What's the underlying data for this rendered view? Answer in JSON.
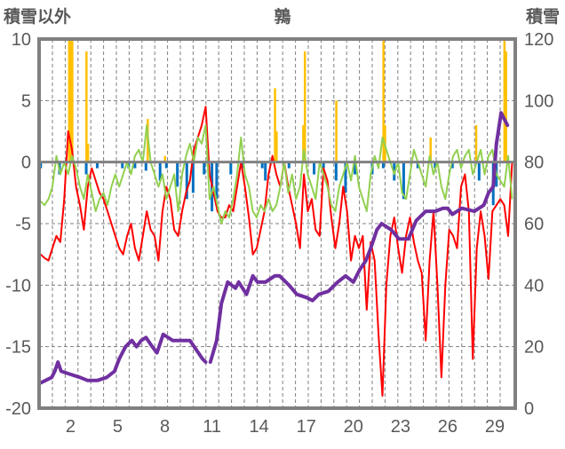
{
  "chart_data": {
    "type": "line",
    "title": "鶉",
    "ylabel_left": "積雪以外",
    "ylabel_right": "積雪",
    "ylim_left": [
      -20,
      10
    ],
    "ylim_right": [
      0,
      120
    ],
    "yticks_left": [
      "10",
      "5",
      "0",
      "-5",
      "-10",
      "-15",
      "-20"
    ],
    "yticks_right": [
      "120",
      "100",
      "80",
      "60",
      "40",
      "20",
      "0"
    ],
    "xlim": [
      0,
      30.3
    ],
    "xticks": [
      "2",
      "5",
      "8",
      "11",
      "14",
      "17",
      "20",
      "23",
      "26",
      "29"
    ],
    "grid": true,
    "colors": {
      "red": "#ff0000",
      "green": "#92d050",
      "blue": "#0070c0",
      "orange": "#ffc000",
      "purple": "#7030a0",
      "axis": "#808080"
    },
    "series": [
      {
        "name": "red-line",
        "axis": "left",
        "x_start": 0.1,
        "x_step": 0.25,
        "values": [
          -7.5,
          -7.8,
          -8,
          -7,
          -6,
          -6.5,
          -3,
          2.5,
          1,
          -2,
          -3.5,
          -5.5,
          -2,
          -0.5,
          -1.5,
          -2.5,
          -3,
          -4,
          -5,
          -6,
          -7,
          -7.5,
          -6,
          -5,
          -7,
          -8,
          -6,
          -4,
          -5.5,
          -6,
          -8,
          -4,
          -2,
          -3,
          -5.5,
          -6,
          -4,
          -2.5,
          -1.5,
          1,
          2,
          3,
          4.5,
          -1,
          -2.5,
          -4,
          -4.5,
          -4.5,
          -3.5,
          -4,
          -2,
          0,
          -2,
          -4.5,
          -7.5,
          -7,
          -5.5,
          -4,
          -1,
          0.5,
          -1,
          -2,
          0,
          -2,
          -3.5,
          -5,
          -7,
          -1,
          -4,
          -3,
          -5.5,
          -6,
          -0.5,
          -1.5,
          -4.5,
          -7,
          -5,
          -2,
          -4,
          -8,
          -6,
          -7,
          -6,
          -12,
          -6.5,
          -8,
          -14,
          -19,
          -10,
          -6,
          -4.5,
          -7,
          -9,
          -6,
          -4.5,
          -6.5,
          -8,
          -9,
          -14.5,
          -8,
          -4,
          -10,
          -17.5,
          -10,
          -5.5,
          -6,
          -7,
          -2,
          -1,
          -4,
          -16,
          -7,
          -4,
          -6,
          -9.5,
          -4,
          -3.5,
          -3,
          -3.5,
          -6,
          0
        ]
      },
      {
        "name": "green-line",
        "axis": "left",
        "x_start": 0.1,
        "x_step": 0.25,
        "values": [
          -3.2,
          -3.5,
          -3,
          -2,
          0.5,
          -1,
          0,
          -1,
          0.5,
          -0.5,
          -2,
          -3,
          -1,
          -2.5,
          -4,
          -3,
          -2.5,
          -3.5,
          -2,
          -1,
          -2,
          -1,
          0,
          -1,
          0.5,
          1,
          0,
          3,
          0,
          -1,
          -2,
          -1,
          -3,
          -2,
          -1,
          -4,
          -1,
          0.5,
          1.5,
          0,
          2,
          1.5,
          3,
          -3,
          -2,
          -3.5,
          -5,
          -4,
          -4.5,
          -3,
          -1,
          2,
          -1,
          -2,
          -4,
          -4.5,
          -3.5,
          -4,
          -3,
          -4,
          -3.5,
          -2,
          0,
          -2.5,
          -1,
          -3,
          -2,
          1,
          -1,
          -2,
          -3,
          0,
          -1,
          -2,
          -3.5,
          -4,
          -2,
          -1,
          0,
          -1.5,
          0.5,
          -2,
          -3,
          -4,
          -1,
          0.5,
          -0.5,
          2,
          1,
          0,
          -1,
          0,
          -2.5,
          -3,
          -1,
          1,
          0,
          -1,
          -2,
          0.5,
          -1,
          0,
          -2,
          -3,
          -1,
          0.5,
          1,
          -0.5,
          0.5,
          1,
          -1,
          0,
          1,
          -1,
          0.5,
          1,
          -1,
          -1.5,
          -2,
          0.5,
          -3
        ]
      },
      {
        "name": "snow-depth",
        "axis": "right",
        "points": [
          [
            0,
            8
          ],
          [
            0.4,
            9
          ],
          [
            0.8,
            10
          ],
          [
            1,
            12
          ],
          [
            1.2,
            15
          ],
          [
            1.4,
            12
          ],
          [
            2,
            11
          ],
          [
            2.6,
            10
          ],
          [
            3.1,
            9
          ],
          [
            3.7,
            9
          ],
          [
            4.3,
            10
          ],
          [
            4.8,
            12
          ],
          [
            5.1,
            16
          ],
          [
            5.5,
            20
          ],
          [
            5.9,
            22
          ],
          [
            6.2,
            20
          ],
          [
            6.5,
            22
          ],
          [
            6.8,
            23
          ],
          [
            7.2,
            20
          ],
          [
            7.5,
            18
          ],
          [
            7.9,
            24
          ],
          [
            8.5,
            22
          ],
          [
            9.1,
            22
          ],
          [
            9.6,
            22
          ],
          [
            10,
            19
          ],
          [
            10.4,
            16
          ],
          [
            10.6,
            15
          ],
          null,
          [
            10.9,
            15
          ],
          [
            11.3,
            22
          ],
          [
            11.6,
            34
          ],
          [
            12,
            41
          ],
          [
            12.5,
            39
          ],
          [
            12.7,
            41
          ],
          [
            13.2,
            37
          ],
          [
            13.6,
            43
          ],
          [
            13.9,
            41
          ],
          [
            14.4,
            41
          ],
          [
            15,
            43
          ],
          [
            15.3,
            43
          ],
          [
            15.9,
            40
          ],
          [
            16.4,
            37
          ],
          [
            17,
            36
          ],
          [
            17.4,
            35
          ],
          [
            17.8,
            37
          ],
          [
            18.4,
            38
          ],
          [
            19,
            41
          ],
          [
            19.5,
            43
          ],
          [
            20,
            41
          ],
          [
            20.4,
            45
          ],
          [
            20.8,
            48
          ],
          [
            21.1,
            52
          ],
          [
            21.5,
            58
          ],
          [
            21.8,
            60
          ],
          [
            22.4,
            58
          ],
          [
            22.9,
            55
          ],
          [
            23.5,
            55
          ],
          [
            24,
            61
          ],
          [
            24.6,
            64
          ],
          [
            25.2,
            64
          ],
          [
            25.7,
            65
          ],
          [
            26,
            65
          ],
          [
            26.3,
            63
          ],
          [
            26.9,
            65
          ],
          [
            27.7,
            64
          ],
          [
            28.3,
            66
          ],
          [
            28.6,
            70
          ],
          [
            28.9,
            72
          ],
          [
            29.1,
            86
          ],
          [
            29.4,
            96
          ],
          [
            29.8,
            92
          ]
        ]
      },
      {
        "name": "blue-bars",
        "axis": "left",
        "points": [
          [
            0.1,
            -0.5
          ],
          [
            1.3,
            -1
          ],
          [
            3.0,
            -1
          ],
          [
            3.7,
            -0.5
          ],
          [
            5.3,
            -0.5
          ],
          [
            5.7,
            -0.5
          ],
          [
            6.1,
            -0.5
          ],
          [
            6.8,
            -0.7
          ],
          [
            7.7,
            -1.5
          ],
          [
            8.1,
            -0.5
          ],
          [
            8.8,
            -2
          ],
          [
            9.4,
            -3
          ],
          [
            9.8,
            -2.5
          ],
          [
            10.5,
            -1
          ],
          [
            11.0,
            -4
          ],
          [
            11.3,
            -3
          ],
          [
            12.2,
            -1
          ],
          [
            13.0,
            -0.5
          ],
          [
            14.2,
            -0.5
          ],
          [
            14.4,
            -1.5
          ],
          [
            15.9,
            -0.5
          ],
          [
            17.5,
            -1
          ],
          [
            18.1,
            -0.5
          ],
          [
            18.9,
            -1.5
          ],
          [
            19.5,
            -2.5
          ],
          [
            20.1,
            -1
          ],
          [
            21.2,
            -1
          ],
          [
            21.9,
            -0.5
          ],
          [
            22.6,
            -1.5
          ],
          [
            23.2,
            -3
          ],
          [
            24.1,
            -0.5
          ],
          [
            25.2,
            -0.5
          ],
          [
            26.3,
            -0.5
          ],
          [
            28.0,
            -1.5
          ],
          [
            28.9,
            -3.5
          ],
          [
            29.1,
            -2
          ]
        ]
      },
      {
        "name": "orange-bars",
        "axis": "left",
        "points": [
          [
            1.9,
            10
          ],
          [
            2.0,
            10
          ],
          [
            2.1,
            10
          ],
          [
            3.0,
            9
          ],
          [
            3.1,
            1.5
          ],
          [
            6.9,
            3.5
          ],
          [
            8.0,
            0.5
          ],
          [
            15.0,
            6
          ],
          [
            15.1,
            2.5
          ],
          [
            16.8,
            3
          ],
          [
            16.9,
            9
          ],
          [
            18.9,
            5
          ],
          [
            21.9,
            10
          ],
          [
            22.0,
            3
          ],
          [
            24.9,
            2
          ],
          [
            27.8,
            3
          ],
          [
            29.6,
            10
          ],
          [
            29.7,
            9
          ]
        ]
      }
    ]
  }
}
